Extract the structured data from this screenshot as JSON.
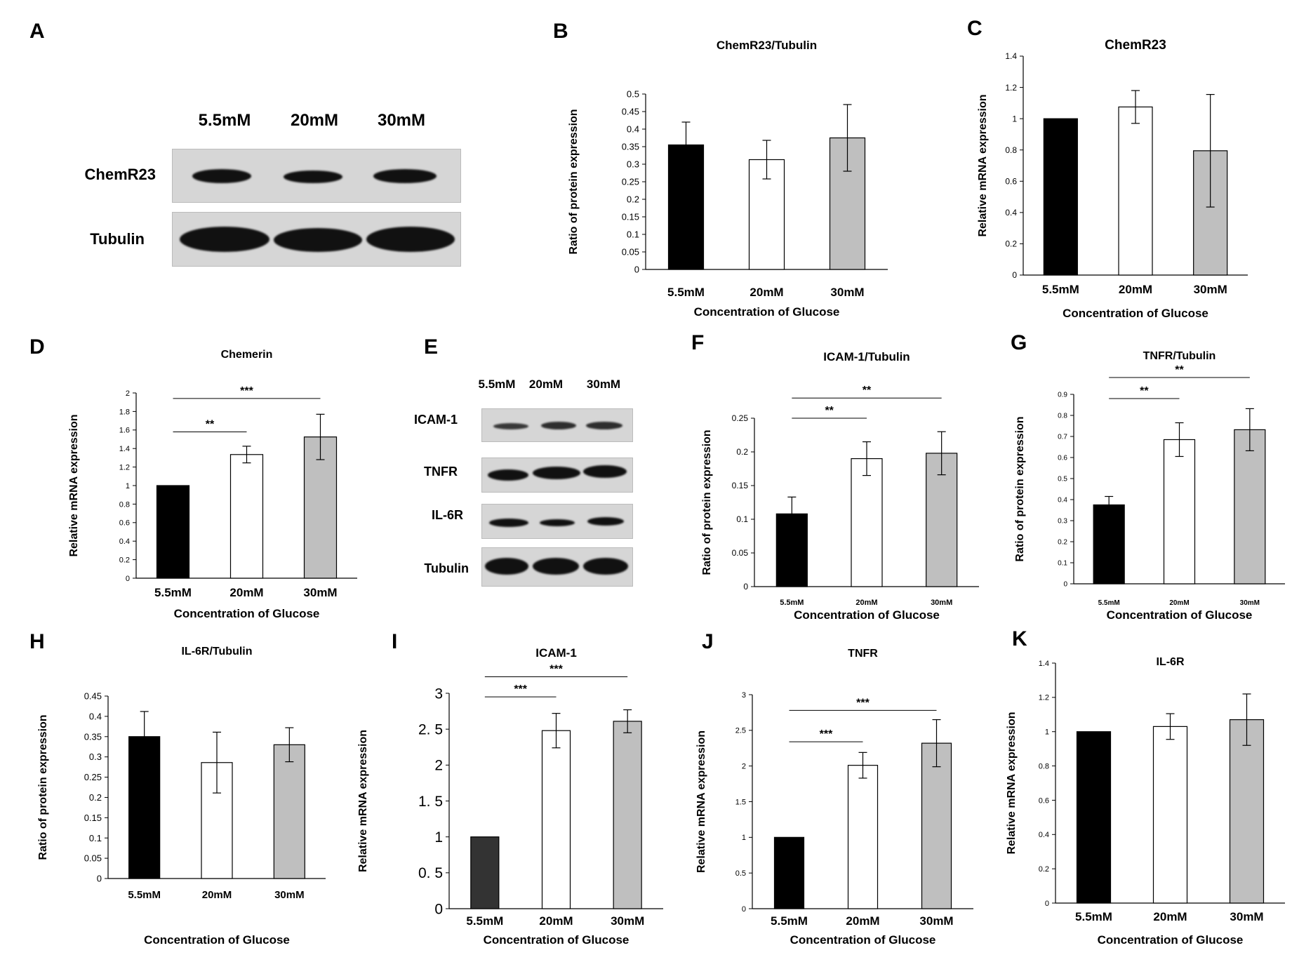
{
  "panel_letters": [
    "A",
    "B",
    "C",
    "D",
    "E",
    "F",
    "G",
    "H",
    "I",
    "J",
    "K"
  ],
  "blot_a": {
    "columns": [
      "5.5mM",
      "20mM",
      "30mM"
    ],
    "rows": [
      "ChemR23",
      "Tubulin"
    ]
  },
  "blot_e": {
    "columns": [
      "5.5mM",
      "20mM",
      "30mM"
    ],
    "rows": [
      "ICAM-1",
      "TNFR",
      "IL-6R",
      "Tubulin"
    ]
  },
  "chart_data": [
    {
      "panel": "B",
      "type": "bar",
      "title": "ChemR23/Tubulin",
      "categories": [
        "5.5mM",
        "20mM",
        "30mM"
      ],
      "values": [
        0.355,
        0.313,
        0.375
      ],
      "errors": [
        0.065,
        0.055,
        0.095
      ],
      "xlabel": "Concentration of Glucose",
      "ylabel": "Ratio of protein expression",
      "ylim": [
        0,
        0.5
      ],
      "yticks": [
        0,
        0.05,
        0.1,
        0.15,
        0.2,
        0.25,
        0.3,
        0.35,
        0.4,
        0.45,
        0.5
      ],
      "ytick_labels": [
        "0",
        "0.05",
        "0.1",
        "0.15",
        "0.2",
        "0.25",
        "0.3",
        "0.35",
        "0.4",
        "0.45",
        "0.5"
      ],
      "bar_colors": [
        "#000000",
        "#ffffff",
        "#bfbfbf"
      ],
      "significance": []
    },
    {
      "panel": "C",
      "type": "bar",
      "title": "ChemR23",
      "categories": [
        "5.5mM",
        "20mM",
        "30mM"
      ],
      "values": [
        1.0,
        1.075,
        0.795
      ],
      "errors": [
        0,
        0.105,
        0.36
      ],
      "xlabel": "Concentration of Glucose",
      "ylabel": "Relative mRNA expression",
      "ylim": [
        0,
        1.4
      ],
      "yticks": [
        0,
        0.2,
        0.4,
        0.6,
        0.8,
        1,
        1.2,
        1.4
      ],
      "ytick_labels": [
        "0",
        "0.2",
        "0.4",
        "0.6",
        "0.8",
        "1",
        "1.2",
        "1.4"
      ],
      "bar_colors": [
        "#000000",
        "#ffffff",
        "#bfbfbf"
      ],
      "significance": []
    },
    {
      "panel": "D",
      "type": "bar",
      "title": "Chemerin",
      "categories": [
        "5.5mM",
        "20mM",
        "30mM"
      ],
      "values": [
        1.0,
        1.335,
        1.525
      ],
      "errors": [
        0,
        0.09,
        0.245
      ],
      "xlabel": "Concentration of Glucose",
      "ylabel": "Relative mRNA expression",
      "ylim": [
        0,
        2
      ],
      "yticks": [
        0,
        0.2,
        0.4,
        0.6,
        0.8,
        1,
        1.2,
        1.4,
        1.6,
        1.8,
        2
      ],
      "ytick_labels": [
        "0",
        "0.2",
        "0.4",
        "0.6",
        "0.8",
        "1",
        "1.2",
        "1.4",
        "1.6",
        "1.8",
        "2"
      ],
      "bar_colors": [
        "#000000",
        "#ffffff",
        "#bfbfbf"
      ],
      "significance": [
        {
          "from": 0,
          "to": 1,
          "level": 1.58,
          "label": "**"
        },
        {
          "from": 0,
          "to": 2,
          "level": 1.94,
          "label": "***"
        }
      ]
    },
    {
      "panel": "F",
      "type": "bar",
      "title": "ICAM-1/Tubulin",
      "categories": [
        "5.5mM",
        "20mM",
        "30mM"
      ],
      "values": [
        0.108,
        0.19,
        0.198
      ],
      "errors": [
        0.025,
        0.025,
        0.032
      ],
      "xlabel": "Concentration of Glucose",
      "ylabel": "Ratio of protein expression",
      "ylim": [
        0,
        0.25
      ],
      "yticks": [
        0,
        0.05,
        0.1,
        0.15,
        0.2,
        0.25
      ],
      "ytick_labels": [
        "0",
        "0.05",
        "0.1",
        "0.15",
        "0.2",
        "0.25"
      ],
      "bar_colors": [
        "#000000",
        "#ffffff",
        "#bfbfbf"
      ],
      "significance": [
        {
          "from": 0,
          "to": 1,
          "level": 0.25,
          "label": "**"
        },
        {
          "from": 0,
          "to": 2,
          "level": 0.28,
          "label": "**"
        }
      ]
    },
    {
      "panel": "G",
      "type": "bar",
      "title": "TNFR/Tubulin",
      "categories": [
        "5.5mM",
        "20mM",
        "30mM"
      ],
      "values": [
        0.375,
        0.685,
        0.732
      ],
      "errors": [
        0.04,
        0.08,
        0.1
      ],
      "xlabel": "Concentration of Glucose",
      "ylabel": "Ratio of protein expression",
      "ylim": [
        0,
        0.9
      ],
      "yticks": [
        0,
        0.1,
        0.2,
        0.3,
        0.4,
        0.5,
        0.6,
        0.7,
        0.8,
        0.9
      ],
      "ytick_labels": [
        "0",
        "0.1",
        "0.2",
        "0.3",
        "0.4",
        "0.5",
        "0.6",
        "0.7",
        "0.8",
        "0.9"
      ],
      "bar_colors": [
        "#000000",
        "#ffffff",
        "#bfbfbf"
      ],
      "significance": [
        {
          "from": 0,
          "to": 1,
          "level": 0.88,
          "label": "**"
        },
        {
          "from": 0,
          "to": 2,
          "level": 0.98,
          "label": "**"
        }
      ]
    },
    {
      "panel": "H",
      "type": "bar",
      "title": "IL-6R/Tubulin",
      "categories": [
        "5.5mM",
        "20mM",
        "30mM"
      ],
      "values": [
        0.35,
        0.286,
        0.33
      ],
      "errors": [
        0.062,
        0.075,
        0.042
      ],
      "xlabel": "Concentration of Glucose",
      "ylabel": "Ratio of protein expression",
      "ylim": [
        0,
        0.45
      ],
      "yticks": [
        0,
        0.05,
        0.1,
        0.15,
        0.2,
        0.25,
        0.3,
        0.35,
        0.4,
        0.45
      ],
      "ytick_labels": [
        "0",
        "0.05",
        "0.1",
        "0.15",
        "0.2",
        "0.25",
        "0.3",
        "0.35",
        "0.4",
        "0.45"
      ],
      "bar_colors": [
        "#000000",
        "#ffffff",
        "#bfbfbf"
      ],
      "significance": []
    },
    {
      "panel": "I",
      "type": "bar",
      "title": "ICAM-1",
      "categories": [
        "5.5mM",
        "20mM",
        "30mM"
      ],
      "values": [
        1.0,
        2.48,
        2.61
      ],
      "errors": [
        0,
        0.24,
        0.16
      ],
      "xlabel": "Concentration of Glucose",
      "ylabel": "Relative mRNA expression",
      "ylim": [
        0,
        3
      ],
      "yticks": [
        0,
        0.5,
        1,
        1.5,
        2,
        2.5,
        3
      ],
      "ytick_labels": [
        "0",
        "0. 5",
        "1",
        "1. 5",
        "2",
        "2. 5",
        "3"
      ],
      "bar_colors": [
        "#333333",
        "#ffffff",
        "#bfbfbf"
      ],
      "significance": [
        {
          "from": 0,
          "to": 1,
          "level": 2.95,
          "label": "***"
        },
        {
          "from": 0,
          "to": 2,
          "level": 3.23,
          "label": "***"
        }
      ]
    },
    {
      "panel": "J",
      "type": "bar",
      "title": "TNFR",
      "categories": [
        "5.5mM",
        "20mM",
        "30mM"
      ],
      "values": [
        1.0,
        2.01,
        2.32
      ],
      "errors": [
        0,
        0.18,
        0.33
      ],
      "xlabel": "Concentration of Glucose",
      "ylabel": "Relative mRNA expression",
      "ylim": [
        0,
        3
      ],
      "yticks": [
        0,
        0.5,
        1,
        1.5,
        2,
        2.5,
        3
      ],
      "ytick_labels": [
        "0",
        "0.5",
        "1",
        "1.5",
        "2",
        "2.5",
        "3"
      ],
      "bar_colors": [
        "#000000",
        "#ffffff",
        "#bfbfbf"
      ],
      "significance": [
        {
          "from": 0,
          "to": 1,
          "level": 2.34,
          "label": "***"
        },
        {
          "from": 0,
          "to": 2,
          "level": 2.78,
          "label": "***"
        }
      ]
    },
    {
      "panel": "K",
      "type": "bar",
      "title": "IL-6R",
      "categories": [
        "5.5mM",
        "20mM",
        "30mM"
      ],
      "values": [
        1.0,
        1.03,
        1.07
      ],
      "errors": [
        0,
        0.075,
        0.15
      ],
      "xlabel": "Concentration of Glucose",
      "ylabel": "Relative mRNA expression",
      "ylim": [
        0,
        1.4
      ],
      "yticks": [
        0,
        0.2,
        0.4,
        0.6,
        0.8,
        1,
        1.2,
        1.4
      ],
      "ytick_labels": [
        "0",
        "0.2",
        "0.4",
        "0.6",
        "0.8",
        "1",
        "1.2",
        "1.4"
      ],
      "bar_colors": [
        "#000000",
        "#ffffff",
        "#bfbfbf"
      ],
      "significance": []
    }
  ]
}
